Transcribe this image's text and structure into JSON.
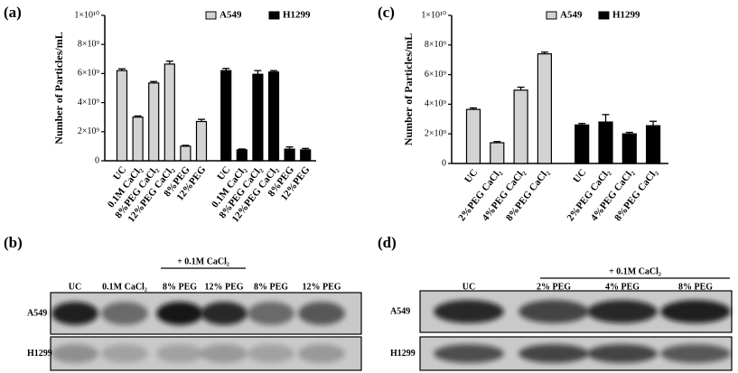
{
  "chart_data": [
    {
      "type": "bar",
      "panel_label": "(a)",
      "y_label": "Number of Particles/mL",
      "categories": [
        "UC",
        "0.1M CaCl₂",
        "8%PEG CaCl₂",
        "12%PEG CaCl₂",
        "8%PEG",
        "12%PEG",
        "UC",
        "0.1M CaCl₂",
        "8%PEG CaCl₂",
        "12%PEG CaCl₂",
        "8%PEG",
        "12%PEG"
      ],
      "series": [
        {
          "name": "A549",
          "color": "#d3d3d3",
          "values": [
            6200000000,
            3000000000,
            5350000000,
            6650000000,
            1000000000,
            2700000000,
            null,
            null,
            null,
            null,
            null,
            null
          ],
          "errors": [
            120000000,
            80000000,
            100000000,
            200000000,
            60000000,
            150000000,
            null,
            null,
            null,
            null,
            null,
            null
          ]
        },
        {
          "name": "H1299",
          "color": "#000000",
          "values": [
            null,
            null,
            null,
            null,
            null,
            null,
            6200000000,
            750000000,
            5950000000,
            6100000000,
            800000000,
            750000000
          ],
          "errors": [
            null,
            null,
            null,
            null,
            null,
            null,
            150000000,
            60000000,
            250000000,
            100000000,
            150000000,
            100000000
          ]
        }
      ],
      "ylim": [
        0,
        10000000000
      ],
      "yticks": [
        0,
        {
          "value": 2000000000,
          "label": "2×10⁹"
        },
        {
          "value": 4000000000,
          "label": "4×10⁹"
        },
        {
          "value": 6000000000,
          "label": "6×10⁹"
        },
        {
          "value": 8000000000,
          "label": "8×10⁹"
        },
        {
          "value": 10000000000,
          "label": "1×10¹⁰"
        }
      ]
    },
    {
      "type": "bar",
      "panel_label": "(c)",
      "y_label": "Number of Particles/mL",
      "categories": [
        "UC",
        "2%PEG CaCl₂",
        "4%PEG CaCl₂",
        "8%PEG CaCl₂",
        "UC",
        "2%PEG CaCl₂",
        "4%PEG CaCl₂",
        "8%PEG CaCl₂"
      ],
      "series": [
        {
          "name": "A549",
          "color": "#d3d3d3",
          "values": [
            3650000000,
            1400000000,
            4950000000,
            7400000000,
            null,
            null,
            null,
            null
          ],
          "errors": [
            100000000,
            80000000,
            200000000,
            120000000,
            null,
            null,
            null,
            null
          ]
        },
        {
          "name": "H1299",
          "color": "#000000",
          "values": [
            null,
            null,
            null,
            null,
            2600000000,
            2800000000,
            2000000000,
            2550000000
          ],
          "errors": [
            null,
            null,
            null,
            null,
            100000000,
            500000000,
            100000000,
            300000000
          ]
        }
      ],
      "ylim": [
        0,
        10000000000
      ],
      "yticks": [
        0,
        {
          "value": 2000000000,
          "label": "2×10⁹"
        },
        {
          "value": 4000000000,
          "label": "4×10⁹"
        },
        {
          "value": 6000000000,
          "label": "6×10⁹"
        },
        {
          "value": 8000000000,
          "label": "8×10⁹"
        },
        {
          "value": 10000000000,
          "label": "1×10¹⁰"
        }
      ]
    }
  ],
  "blots": [
    {
      "panel_label": "(b)",
      "header": "+ 0.1M CaCl₂",
      "lanes": [
        "UC",
        "0.1M CaCl₂",
        "8% PEG",
        "12% PEG",
        "8% PEG",
        "12% PEG"
      ],
      "rows": [
        "A549",
        "H1299"
      ]
    },
    {
      "panel_label": "(d)",
      "header": "+ 0.1M CaCl₂",
      "lanes": [
        "UC",
        "2% PEG",
        "4% PEG",
        "8% PEG"
      ],
      "rows": [
        "A549",
        "H1299"
      ]
    }
  ]
}
